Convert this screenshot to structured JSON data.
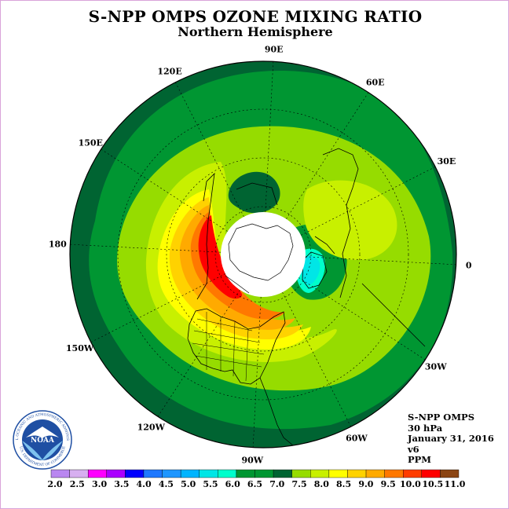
{
  "title": "S-NPP OMPS OZONE MIXING RATIO",
  "subtitle": "Northern Hemisphere",
  "lon_labels": [
    {
      "text": "90E",
      "lon_deg": 90
    },
    {
      "text": "60E",
      "lon_deg": 60
    },
    {
      "text": "30E",
      "lon_deg": 30
    },
    {
      "text": "0",
      "lon_deg": 0
    },
    {
      "text": "30W",
      "lon_deg": -30
    },
    {
      "text": "60W",
      "lon_deg": -60
    },
    {
      "text": "90W",
      "lon_deg": -90
    },
    {
      "text": "120W",
      "lon_deg": -120
    },
    {
      "text": "150W",
      "lon_deg": -150
    },
    {
      "text": "180",
      "lon_deg": 180
    },
    {
      "text": "150E",
      "lon_deg": 150
    },
    {
      "text": "120E",
      "lon_deg": 120
    }
  ],
  "info": {
    "instrument": "S-NPP OMPS",
    "level": "30 hPa",
    "date": "January 31, 2016",
    "version": "v6",
    "units": "PPM"
  },
  "colorbar": {
    "colors": [
      "#b987f0",
      "#d7aff0",
      "#ff00ff",
      "#aa00ff",
      "#0000ff",
      "#1e78ff",
      "#1e96ff",
      "#00b4ff",
      "#00e6e6",
      "#00ffcc",
      "#009632",
      "#009632",
      "#006432",
      "#96dc00",
      "#c8f000",
      "#ffff00",
      "#ffd200",
      "#ffaa00",
      "#ff7800",
      "#ff3c00",
      "#ff0000",
      "#8b4513"
    ],
    "ticks": [
      "2.0",
      "2.5",
      "3.0",
      "3.5",
      "4.0",
      "4.5",
      "5.0",
      "5.5",
      "6.0",
      "6.5",
      "7.0",
      "7.5",
      "8.0",
      "8.5",
      "9.0",
      "9.5",
      "10.0",
      "10.5",
      "11.0"
    ]
  },
  "logo": {
    "text": "NOAA",
    "ring_top": "NATIONAL OCEANIC AND ATMOSPHERIC ADMINISTRATION",
    "ring_bottom": "U.S. DEPARTMENT OF COMMERCE"
  },
  "colors": {
    "ozone_6_5": "#006432",
    "ozone_7_0": "#009632",
    "ozone_7_5": "#96dc00",
    "ozone_8_0": "#c8f000",
    "ozone_8_5": "#ffff00",
    "ozone_9_0": "#ffd200",
    "ozone_9_5": "#ffaa00",
    "ozone_10_0": "#ff7800",
    "ozone_10_5": "#ff0000",
    "low_ozone": "#00ffcc"
  }
}
